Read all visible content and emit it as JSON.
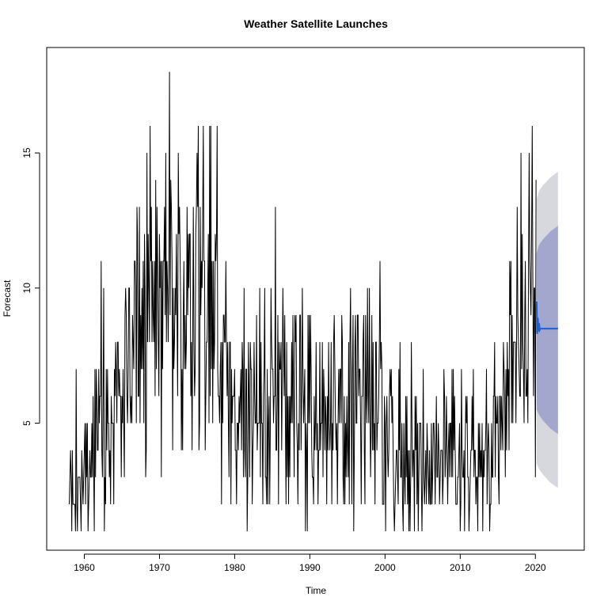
{
  "chart_data": {
    "type": "line",
    "title": "Weather Satellite Launches",
    "xlabel": "Time",
    "ylabel": "Forecast",
    "xlim": [
      1955,
      2026.5
    ],
    "ylim": [
      0.3,
      18.9
    ],
    "x_ticks": [
      1960,
      1970,
      1980,
      1990,
      2000,
      2010,
      2020
    ],
    "y_ticks": [
      5,
      10,
      15
    ],
    "grid": false,
    "legend": "none",
    "colors": {
      "history": "#000000",
      "forecast_line": "#1f5fd6",
      "band_80": "#a3a6cd",
      "band_95": "#d7d7de",
      "frame": "#000000"
    },
    "series": [
      {
        "role": "history",
        "frequency": 12,
        "start": [
          1958,
          1
        ],
        "yearly_profile": {
          "years": [
            1958,
            1959,
            1960,
            1961,
            1962,
            1963,
            1964,
            1965,
            1966,
            1967,
            1968,
            1969,
            1970,
            1971,
            1972,
            1973,
            1974,
            1975,
            1976,
            1977,
            1978,
            1979,
            1980,
            1981,
            1982,
            1983,
            1984,
            1985,
            1986,
            1987,
            1988,
            1989,
            1990,
            1991,
            1992,
            1993,
            1994,
            1995,
            1996,
            1997,
            1998,
            1999,
            2000,
            2001,
            2002,
            2003,
            2004,
            2005,
            2006,
            2007,
            2008,
            2009,
            2010,
            2011,
            2012,
            2013,
            2014,
            2015,
            2016,
            2017,
            2018,
            2019,
            2020
          ],
          "mean": [
            2.5,
            2.8,
            3.5,
            4.5,
            5.5,
            5.0,
            6.0,
            7.0,
            8.0,
            9.0,
            9.0,
            9.5,
            10.0,
            10.0,
            9.0,
            9.0,
            8.5,
            10.0,
            10.0,
            10.0,
            8.0,
            5.5,
            5.0,
            6.5,
            6.0,
            5.5,
            6.0,
            6.5,
            6.0,
            5.5,
            5.5,
            5.5,
            5.5,
            5.0,
            5.0,
            5.0,
            5.0,
            5.0,
            5.5,
            6.0,
            5.5,
            5.5,
            4.5,
            4.0,
            4.0,
            4.0,
            4.0,
            3.8,
            4.0,
            4.0,
            4.0,
            4.0,
            3.5,
            3.5,
            3.5,
            3.5,
            4.5,
            5.0,
            7.0,
            8.0,
            8.5,
            9.5,
            8.5
          ],
          "min": [
            1,
            1,
            1,
            1,
            1,
            2,
            3,
            3,
            5,
            5,
            3,
            6,
            3,
            4,
            4,
            4,
            4,
            4,
            4,
            5,
            2,
            2,
            2,
            1,
            2,
            2,
            2,
            2,
            2,
            2,
            2,
            1,
            2,
            2,
            2,
            2,
            2,
            1,
            2,
            2,
            2,
            2,
            1,
            1,
            1,
            1,
            1,
            2,
            2,
            2,
            2,
            2,
            1,
            1,
            1,
            1,
            2,
            2,
            3,
            5,
            5,
            5,
            3
          ],
          "max": [
            7,
            4,
            5,
            7,
            11,
            7,
            8,
            10,
            11,
            13,
            16,
            14,
            15,
            18,
            15,
            13,
            13,
            16,
            16,
            16,
            11,
            8,
            7,
            10,
            9,
            10,
            10,
            13,
            10,
            9,
            9,
            10,
            9,
            8,
            8,
            9,
            9,
            10,
            9,
            10,
            9,
            11,
            7,
            7,
            8,
            8,
            6,
            7,
            6,
            7,
            7,
            7,
            7,
            7,
            5,
            7,
            8,
            8,
            11,
            13,
            15,
            16,
            14
          ]
        }
      },
      {
        "role": "forecast_mean",
        "x": [
          2020.17,
          2020.25,
          2020.33,
          2020.42,
          2020.5,
          2020.58,
          2020.67,
          2021.0,
          2022.0,
          2023.0
        ],
        "values": [
          9.5,
          8.3,
          8.9,
          8.4,
          8.7,
          8.45,
          8.5,
          8.5,
          8.5,
          8.5
        ]
      },
      {
        "role": "interval_80",
        "x": [
          2020.17,
          2020.5,
          2021.0,
          2022.0,
          2023.0
        ],
        "lower": [
          5.5,
          5.3,
          5.1,
          4.8,
          4.6
        ],
        "upper": [
          11.3,
          11.6,
          11.8,
          12.1,
          12.3
        ]
      },
      {
        "role": "interval_95",
        "x": [
          2020.17,
          2020.5,
          2021.0,
          2022.0,
          2023.0
        ],
        "lower": [
          3.5,
          3.3,
          3.1,
          2.8,
          2.6
        ],
        "upper": [
          13.3,
          13.6,
          13.8,
          14.1,
          14.3
        ]
      }
    ]
  }
}
